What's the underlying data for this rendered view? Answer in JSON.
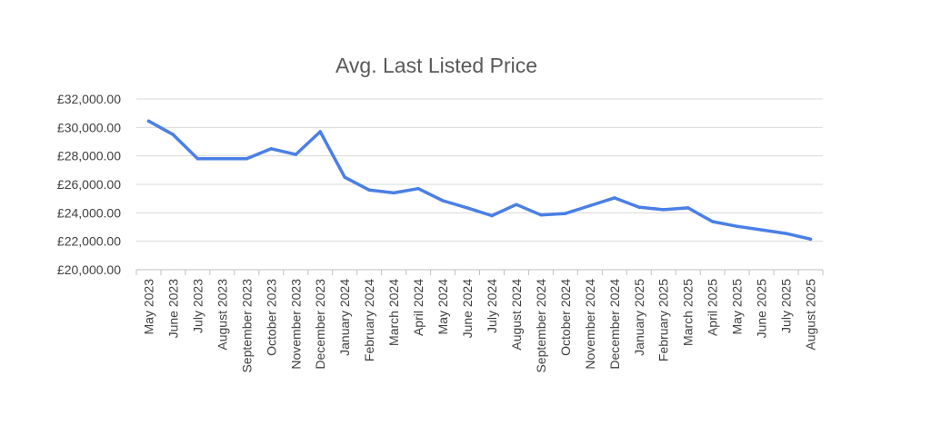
{
  "chart_data": {
    "type": "line",
    "title": "Avg. Last Listed Price",
    "xlabel": "",
    "ylabel": "",
    "ylim": [
      20000,
      32000
    ],
    "yticks": [
      20000,
      22000,
      24000,
      26000,
      28000,
      30000,
      32000
    ],
    "ytick_labels": [
      "£20,000.00",
      "£22,000.00",
      "£24,000.00",
      "£26,000.00",
      "£28,000.00",
      "£30,000.00",
      "£32,000.00"
    ],
    "categories": [
      "May 2023",
      "June 2023",
      "July 2023",
      "August 2023",
      "September 2023",
      "October 2023",
      "November 2023",
      "December 2023",
      "January 2024",
      "February 2024",
      "March 2024",
      "April 2024",
      "May 2024",
      "June 2024",
      "July 2024",
      "August 2024",
      "September 2024",
      "October 2024",
      "November 2024",
      "December 2024",
      "January 2025",
      "February 2025",
      "March 2025",
      "April 2025",
      "May 2025",
      "June 2025",
      "July 2025",
      "August 2025"
    ],
    "series": [
      {
        "values": [
          30450,
          29500,
          27800,
          27800,
          27800,
          28500,
          28100,
          29700,
          26500,
          25600,
          25400,
          25700,
          24850,
          24350,
          23800,
          24580,
          23850,
          23950,
          24500,
          25050,
          24400,
          24220,
          24350,
          23380,
          23050,
          22800,
          22550,
          22150
        ],
        "color": "#4a7fe6"
      }
    ],
    "grid": true,
    "legend": "none"
  }
}
